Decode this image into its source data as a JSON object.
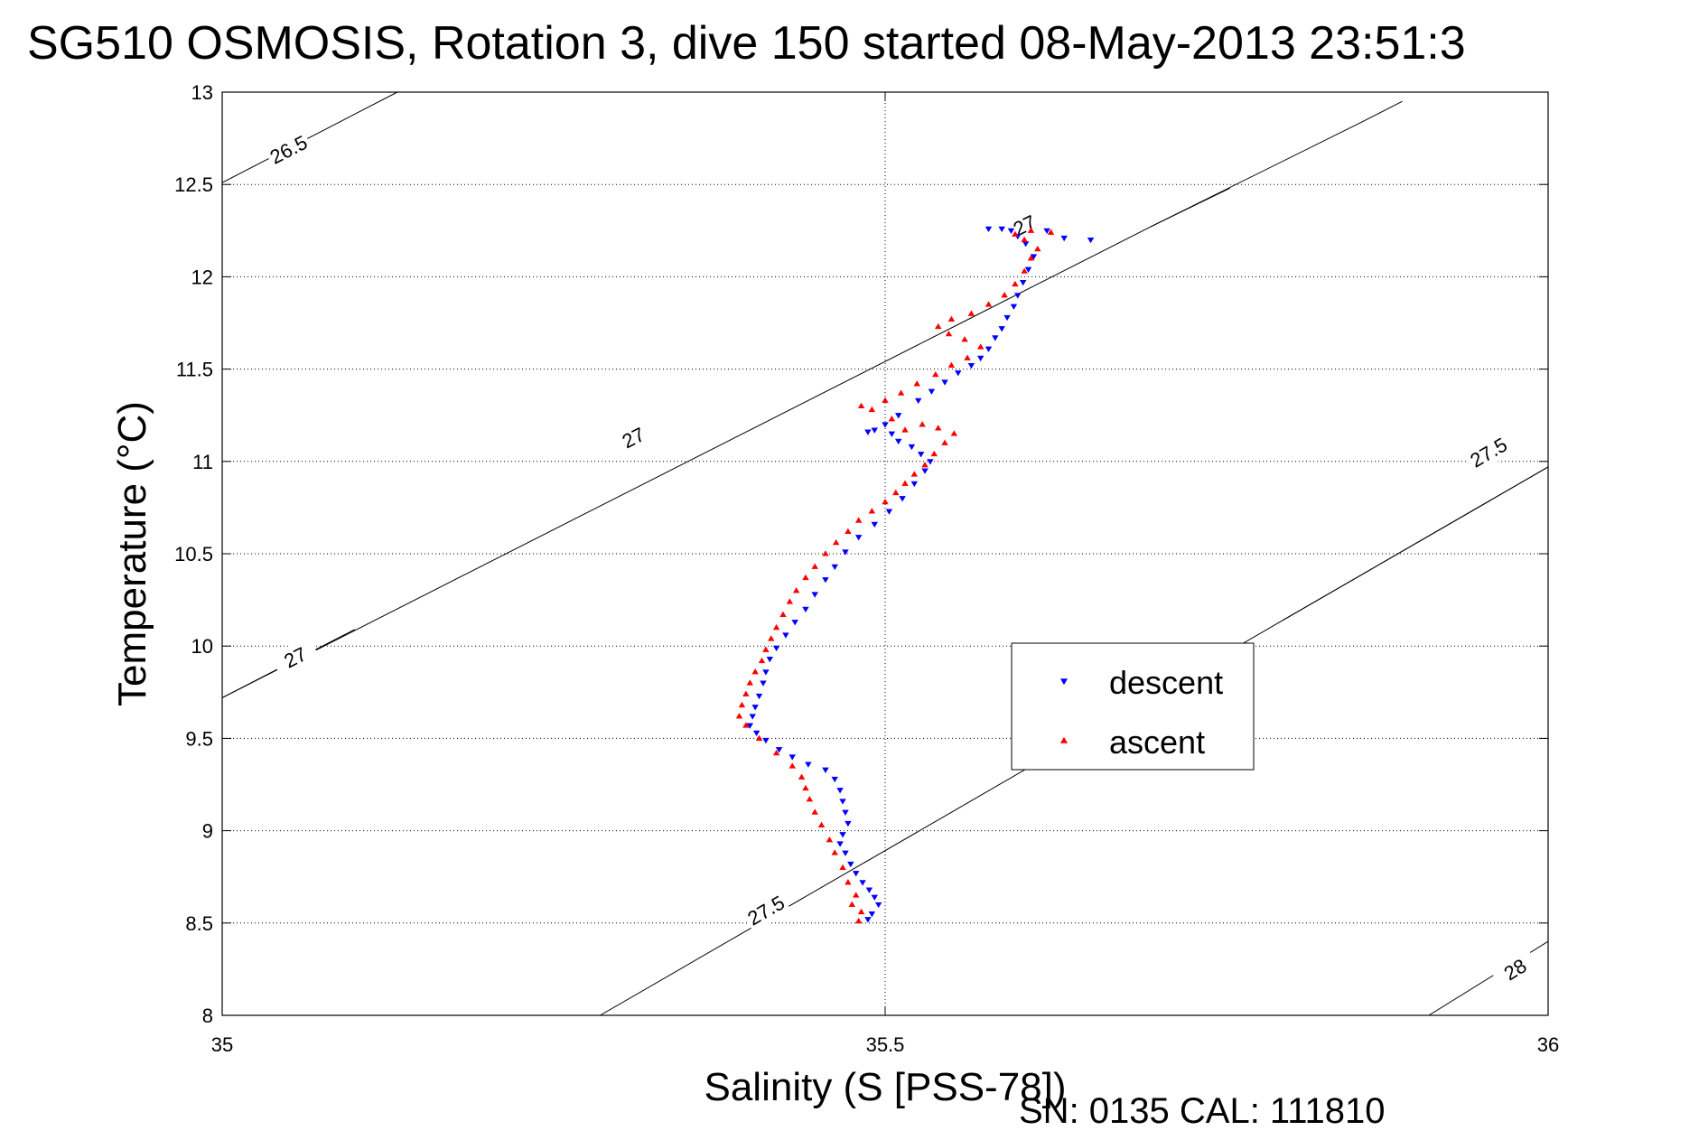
{
  "title": "SG510 OSMOSIS, Rotation 3, dive 150 started 08-May-2013 23:51:3",
  "footer": "SN: 0135  CAL: 111810",
  "chart_data": {
    "type": "scatter",
    "xlabel": "Salinity (S [PSS-78])",
    "ylabel": "Temperature (°C)",
    "xlim": [
      35,
      36
    ],
    "ylim": [
      8,
      13
    ],
    "x_ticks": [
      "35",
      "35.5",
      "36"
    ],
    "y_ticks": [
      "8",
      "8.5",
      "9",
      "9.5",
      "10",
      "10.5",
      "11",
      "11.5",
      "12",
      "12.5",
      "13"
    ],
    "grid": true,
    "legend_position": "right-center",
    "colors": {
      "descent": "#0000ff",
      "ascent": "#ff0000",
      "contour": "#000000"
    },
    "contours": [
      {
        "label": "26.5",
        "points": [
          [
            35.0,
            12.51
          ],
          [
            35.132,
            13.0
          ]
        ],
        "label_at": [
          35.05,
          12.69
        ]
      },
      {
        "label": "27",
        "points": [
          [
            35.0,
            9.72
          ],
          [
            35.28,
            10.74
          ],
          [
            35.56,
            11.76
          ],
          [
            35.7,
            12.27
          ],
          [
            35.86,
            12.84
          ],
          [
            35.89,
            12.95
          ]
        ],
        "label_at": [
          35.31,
          11.13
        ]
      },
      {
        "label": "27",
        "points": [
          [
            35.0,
            9.72
          ],
          [
            35.1,
            10.09
          ]
        ],
        "label_at": [
          35.055,
          9.94
        ]
      },
      {
        "label": "27",
        "points": [
          [
            35.7,
            12.27
          ],
          [
            35.76,
            12.48
          ]
        ],
        "label_at": [
          35.605,
          12.28
        ]
      },
      {
        "label": "27.5",
        "points": [
          [
            35.285,
            8.0
          ],
          [
            35.55,
            9.1
          ],
          [
            35.8,
            10.14
          ],
          [
            36.0,
            10.97
          ]
        ],
        "label_at": [
          35.41,
          8.57
        ]
      },
      {
        "label": "27.5",
        "points": [
          [
            35.8,
            10.14
          ],
          [
            36.0,
            10.97
          ]
        ],
        "label_at": [
          35.955,
          11.05
        ]
      },
      {
        "label": "28",
        "points": [
          [
            35.91,
            8.0
          ],
          [
            36.0,
            8.4
          ]
        ],
        "label_at": [
          35.975,
          8.25
        ]
      }
    ],
    "series": [
      {
        "name": "descent",
        "marker": "triangle-down",
        "points": [
          [
            35.487,
            8.52
          ],
          [
            35.49,
            8.55
          ],
          [
            35.495,
            8.6
          ],
          [
            35.492,
            8.64
          ],
          [
            35.488,
            8.68
          ],
          [
            35.483,
            8.72
          ],
          [
            35.478,
            8.77
          ],
          [
            35.474,
            8.82
          ],
          [
            35.47,
            8.88
          ],
          [
            35.466,
            8.93
          ],
          [
            35.468,
            8.98
          ],
          [
            35.472,
            9.04
          ],
          [
            35.47,
            9.1
          ],
          [
            35.468,
            9.16
          ],
          [
            35.466,
            9.22
          ],
          [
            35.462,
            9.28
          ],
          [
            35.455,
            9.33
          ],
          [
            35.442,
            9.36
          ],
          [
            35.43,
            9.4
          ],
          [
            35.42,
            9.44
          ],
          [
            35.41,
            9.49
          ],
          [
            35.403,
            9.53
          ],
          [
            35.398,
            9.57
          ],
          [
            35.4,
            9.62
          ],
          [
            35.402,
            9.67
          ],
          [
            35.405,
            9.73
          ],
          [
            35.408,
            9.8
          ],
          [
            35.41,
            9.86
          ],
          [
            35.413,
            9.93
          ],
          [
            35.418,
            9.99
          ],
          [
            35.425,
            10.06
          ],
          [
            35.432,
            10.13
          ],
          [
            35.44,
            10.2
          ],
          [
            35.447,
            10.28
          ],
          [
            35.455,
            10.36
          ],
          [
            35.462,
            10.43
          ],
          [
            35.47,
            10.51
          ],
          [
            35.48,
            10.59
          ],
          [
            35.492,
            10.66
          ],
          [
            35.503,
            10.73
          ],
          [
            35.513,
            10.8
          ],
          [
            35.522,
            10.88
          ],
          [
            35.53,
            10.95
          ],
          [
            35.534,
            11.0
          ],
          [
            35.527,
            11.04
          ],
          [
            35.52,
            11.08
          ],
          [
            35.51,
            11.11
          ],
          [
            35.505,
            11.15
          ],
          [
            35.5,
            11.2
          ],
          [
            35.492,
            11.17
          ],
          [
            35.487,
            11.16
          ],
          [
            35.51,
            11.25
          ],
          [
            35.525,
            11.33
          ],
          [
            35.535,
            11.38
          ],
          [
            35.545,
            11.43
          ],
          [
            35.555,
            11.48
          ],
          [
            35.565,
            11.52
          ],
          [
            35.572,
            11.56
          ],
          [
            35.578,
            11.61
          ],
          [
            35.583,
            11.67
          ],
          [
            35.588,
            11.72
          ],
          [
            35.592,
            11.78
          ],
          [
            35.597,
            11.84
          ],
          [
            35.6,
            11.9
          ],
          [
            35.604,
            11.97
          ],
          [
            35.608,
            12.04
          ],
          [
            35.612,
            12.11
          ],
          [
            35.606,
            12.18
          ],
          [
            35.6,
            12.22
          ],
          [
            35.595,
            12.25
          ],
          [
            35.588,
            12.26
          ],
          [
            35.578,
            12.26
          ],
          [
            35.622,
            12.25
          ],
          [
            35.635,
            12.21
          ],
          [
            35.655,
            12.2
          ]
        ]
      },
      {
        "name": "ascent",
        "marker": "triangle-up",
        "points": [
          [
            35.48,
            8.51
          ],
          [
            35.482,
            8.56
          ],
          [
            35.475,
            8.6
          ],
          [
            35.478,
            8.65
          ],
          [
            35.472,
            8.72
          ],
          [
            35.468,
            8.8
          ],
          [
            35.462,
            8.88
          ],
          [
            35.458,
            8.95
          ],
          [
            35.452,
            9.03
          ],
          [
            35.447,
            9.1
          ],
          [
            35.443,
            9.17
          ],
          [
            35.44,
            9.23
          ],
          [
            35.437,
            9.29
          ],
          [
            35.43,
            9.35
          ],
          [
            35.418,
            9.42
          ],
          [
            35.405,
            9.5
          ],
          [
            35.395,
            9.57
          ],
          [
            35.39,
            9.62
          ],
          [
            35.392,
            9.68
          ],
          [
            35.395,
            9.74
          ],
          [
            35.398,
            9.8
          ],
          [
            35.402,
            9.86
          ],
          [
            35.407,
            9.92
          ],
          [
            35.41,
            9.98
          ],
          [
            35.414,
            10.04
          ],
          [
            35.418,
            10.1
          ],
          [
            35.423,
            10.17
          ],
          [
            35.428,
            10.24
          ],
          [
            35.433,
            10.3
          ],
          [
            35.44,
            10.37
          ],
          [
            35.447,
            10.43
          ],
          [
            35.455,
            10.5
          ],
          [
            35.463,
            10.56
          ],
          [
            35.472,
            10.62
          ],
          [
            35.48,
            10.68
          ],
          [
            35.49,
            10.73
          ],
          [
            35.5,
            10.78
          ],
          [
            35.508,
            10.83
          ],
          [
            35.515,
            10.88
          ],
          [
            35.522,
            10.93
          ],
          [
            35.53,
            10.98
          ],
          [
            35.537,
            11.04
          ],
          [
            35.545,
            11.1
          ],
          [
            35.552,
            11.15
          ],
          [
            35.54,
            11.18
          ],
          [
            35.528,
            11.2
          ],
          [
            35.515,
            11.17
          ],
          [
            35.505,
            11.23
          ],
          [
            35.49,
            11.28
          ],
          [
            35.482,
            11.3
          ],
          [
            35.5,
            11.33
          ],
          [
            35.512,
            11.37
          ],
          [
            35.524,
            11.42
          ],
          [
            35.538,
            11.47
          ],
          [
            35.55,
            11.52
          ],
          [
            35.562,
            11.56
          ],
          [
            35.572,
            11.62
          ],
          [
            35.56,
            11.66
          ],
          [
            35.548,
            11.69
          ],
          [
            35.54,
            11.73
          ],
          [
            35.55,
            11.77
          ],
          [
            35.565,
            11.8
          ],
          [
            35.578,
            11.85
          ],
          [
            35.59,
            11.9
          ],
          [
            35.598,
            11.96
          ],
          [
            35.605,
            12.03
          ],
          [
            35.61,
            12.1
          ],
          [
            35.615,
            12.15
          ],
          [
            35.605,
            12.2
          ],
          [
            35.598,
            12.23
          ],
          [
            35.61,
            12.25
          ],
          [
            35.625,
            12.24
          ]
        ]
      }
    ]
  }
}
